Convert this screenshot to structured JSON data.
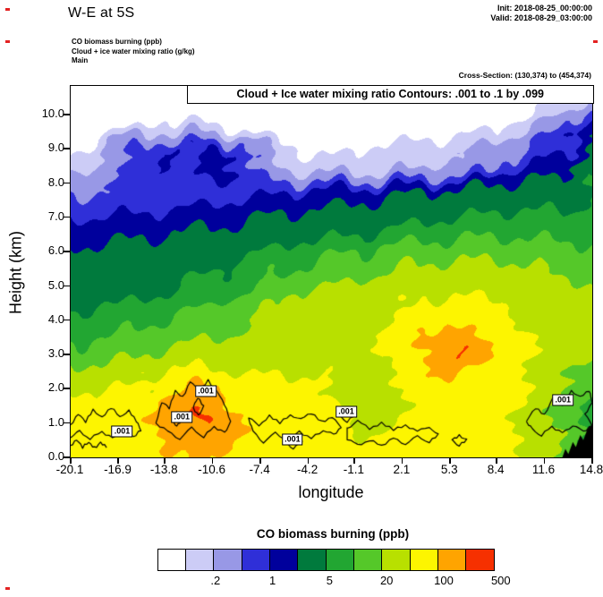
{
  "header": {
    "title": "W-E at 5S",
    "init": "Init: 2018-08-25_00:00:00",
    "valid": "Valid: 2018-08-29_03:00:00"
  },
  "legend": {
    "line1": "CO biomass burning   (ppb)",
    "line2": "Cloud + ice water mixing ratio   (g/kg)",
    "line3": "Main"
  },
  "cross_section": "Cross-Section: (130,374) to (454,374)",
  "plot": {
    "inner_title": "Cloud + Ice water mixing ratio Contours: .001 to .1 by .099",
    "xlabel": "longitude",
    "ylabel": "Height (km)"
  },
  "colorbar": {
    "title": "CO biomass burning  (ppb)",
    "tick_labels": [
      ".2",
      "1",
      "5",
      "20",
      "100",
      "500"
    ],
    "tick_boundary_cells": [
      2,
      4,
      6,
      8,
      10,
      12
    ]
  },
  "chart_data": {
    "type": "contour",
    "title": "Cloud + Ice water mixing ratio Contours: .001 to .1 by .099",
    "xlabel": "longitude",
    "ylabel": "Height (km)",
    "xlim": [
      -20.1,
      14.8
    ],
    "ylim": [
      0,
      10.84
    ],
    "x_ticks": [
      -20.1,
      -16.9,
      -13.8,
      -10.6,
      -7.4,
      -4.2,
      -1.1,
      2.1,
      5.3,
      8.4,
      11.6,
      14.8
    ],
    "y_ticks": [
      "0.0",
      "1.0",
      "2.0",
      "3.0",
      "4.0",
      "5.0",
      "6.0",
      "7.0",
      "8.0",
      "9.0",
      "10.0"
    ],
    "fill_levels_ppb": [
      0.1,
      0.2,
      0.5,
      1,
      2,
      5,
      10,
      20,
      50,
      100,
      200,
      500
    ],
    "fill_colors": [
      "#ffffff",
      "#ccccf6",
      "#9898e6",
      "#2f2fd8",
      "#00009c",
      "#007a3d",
      "#22a632",
      "#55c829",
      "#b8e000",
      "#fdf500",
      "#ffa400",
      "#f63000"
    ],
    "fill_field": {
      "name": "CO biomass burning",
      "units": "ppb",
      "lons": [
        -20.1,
        -18.6,
        -17.1,
        -15.6,
        -14.1,
        -12.5,
        -11.0,
        -9.5,
        -8.0,
        -6.5,
        -4.9,
        -3.4,
        -1.9,
        -0.4,
        1.1,
        2.7,
        4.2,
        5.7,
        7.2,
        8.7,
        10.3,
        11.8,
        13.3,
        14.8
      ],
      "heights_km": [
        0,
        0.6,
        1.2,
        1.8,
        2.4,
        3.0,
        3.6,
        4.2,
        4.8,
        5.4,
        6.0,
        6.6,
        7.2,
        7.8,
        8.4,
        9.0,
        9.6,
        10.2,
        10.8
      ],
      "values_ppb": [
        [
          70,
          70,
          75,
          75,
          85,
          95,
          110,
          90,
          75,
          70,
          70,
          65,
          60,
          55,
          60,
          65,
          70,
          70,
          65,
          60,
          50,
          40,
          15,
          8
        ],
        [
          65,
          70,
          75,
          80,
          110,
          150,
          170,
          120,
          80,
          70,
          70,
          65,
          60,
          50,
          55,
          65,
          70,
          70,
          65,
          55,
          45,
          30,
          12,
          7
        ],
        [
          60,
          65,
          70,
          75,
          120,
          170,
          230,
          130,
          75,
          65,
          60,
          60,
          55,
          30,
          35,
          60,
          70,
          75,
          70,
          60,
          45,
          25,
          12,
          8
        ],
        [
          55,
          60,
          60,
          65,
          100,
          140,
          150,
          100,
          70,
          60,
          55,
          55,
          45,
          25,
          30,
          60,
          75,
          80,
          75,
          65,
          50,
          28,
          14,
          10
        ],
        [
          30,
          35,
          35,
          40,
          60,
          70,
          70,
          60,
          50,
          50,
          50,
          50,
          45,
          35,
          45,
          70,
          90,
          100,
          90,
          70,
          55,
          35,
          18,
          14
        ],
        [
          12,
          14,
          16,
          18,
          25,
          30,
          30,
          30,
          35,
          40,
          45,
          45,
          45,
          45,
          60,
          90,
          130,
          220,
          120,
          80,
          60,
          40,
          25,
          20
        ],
        [
          8,
          9,
          10,
          11,
          14,
          16,
          18,
          20,
          25,
          30,
          35,
          38,
          40,
          42,
          55,
          80,
          110,
          130,
          100,
          70,
          55,
          38,
          28,
          24
        ],
        [
          5,
          6,
          6,
          7,
          8,
          10,
          12,
          14,
          18,
          22,
          28,
          30,
          32,
          35,
          45,
          60,
          75,
          80,
          70,
          60,
          48,
          36,
          28,
          26
        ],
        [
          3.5,
          4,
          4,
          4.5,
          5,
          6,
          7,
          9,
          12,
          16,
          20,
          24,
          26,
          28,
          32,
          40,
          45,
          48,
          45,
          42,
          38,
          30,
          26,
          24
        ],
        [
          2.8,
          3,
          3,
          3.2,
          3.5,
          4,
          4.5,
          5.5,
          7,
          9,
          12,
          14,
          16,
          18,
          22,
          26,
          28,
          28,
          28,
          28,
          26,
          22,
          18,
          16
        ],
        [
          2.2,
          2.4,
          2.4,
          2.6,
          2.8,
          3,
          3.2,
          3.6,
          4.5,
          5.5,
          7,
          8,
          9,
          10,
          12,
          14,
          15,
          16,
          16,
          16,
          15,
          14,
          12,
          12
        ],
        [
          1.4,
          1.5,
          1.6,
          1.7,
          1.8,
          2,
          2.2,
          2.4,
          2.8,
          3.2,
          3.6,
          3.8,
          4,
          4.5,
          5.5,
          6.5,
          7,
          7.5,
          8,
          8.5,
          8.5,
          8,
          7.5,
          8
        ],
        [
          0.8,
          0.85,
          0.9,
          0.95,
          1,
          1.1,
          1.2,
          1.3,
          1.5,
          1.7,
          1.9,
          2.1,
          2.3,
          2.6,
          3,
          3.4,
          3.8,
          4.2,
          4.6,
          5,
          5.2,
          5,
          4.8,
          6
        ],
        [
          0.4,
          0.45,
          0.5,
          0.55,
          0.6,
          0.65,
          0.7,
          0.75,
          0.8,
          0.9,
          1,
          1.1,
          1.2,
          1.3,
          1.5,
          1.7,
          1.9,
          2.1,
          2.4,
          2.8,
          3.2,
          3.4,
          3,
          5.5
        ],
        [
          0.18,
          0.25,
          0.5,
          0.8,
          1,
          0.8,
          1.2,
          1.4,
          0.8,
          0.25,
          0.18,
          0.15,
          0.15,
          0.15,
          0.18,
          0.2,
          0.25,
          0.3,
          0.4,
          0.8,
          1.2,
          1.5,
          1.2,
          5
        ],
        [
          0.08,
          0.12,
          0.3,
          0.7,
          1.2,
          0.7,
          1.4,
          0.9,
          0.3,
          0.15,
          0.1,
          0.08,
          0.08,
          0.1,
          0.12,
          0.12,
          0.15,
          0.15,
          0.2,
          0.3,
          0.5,
          0.8,
          1,
          4
        ],
        [
          0.05,
          0.06,
          0.08,
          0.12,
          0.15,
          0.12,
          0.15,
          0.12,
          0.08,
          0.06,
          0.05,
          0.05,
          0.05,
          0.05,
          0.06,
          0.06,
          0.07,
          0.07,
          0.08,
          0.1,
          0.15,
          0.3,
          0.6,
          1.5
        ],
        [
          0.04,
          0.04,
          0.05,
          0.05,
          0.06,
          0.05,
          0.05,
          0.05,
          0.04,
          0.04,
          0.04,
          0.04,
          0.04,
          0.04,
          0.04,
          0.05,
          0.05,
          0.05,
          0.05,
          0.06,
          0.08,
          0.12,
          0.25,
          0.5
        ],
        [
          0.04,
          0.04,
          0.04,
          0.04,
          0.04,
          0.04,
          0.04,
          0.04,
          0.04,
          0.04,
          0.04,
          0.04,
          0.04,
          0.04,
          0.04,
          0.04,
          0.04,
          0.04,
          0.04,
          0.04,
          0.05,
          0.06,
          0.1,
          0.2
        ]
      ]
    },
    "cloud_contours": {
      "name": "Cloud + Ice water mixing ratio",
      "units": "g/kg",
      "levels": [
        0.001,
        0.1
      ],
      "paths": [
        {
          "level": 0.001,
          "points": [
            [
              -20.1,
              0.95
            ],
            [
              -19.6,
              1.25
            ],
            [
              -19.1,
              1.05
            ],
            [
              -18.6,
              1.4
            ],
            [
              -18.0,
              1.15
            ],
            [
              -17.4,
              1.45
            ],
            [
              -16.8,
              1.2
            ],
            [
              -16.2,
              1.35
            ],
            [
              -15.7,
              1.05
            ],
            [
              -15.4,
              0.8
            ],
            [
              -15.9,
              0.6
            ],
            [
              -16.6,
              0.75
            ],
            [
              -17.3,
              0.55
            ],
            [
              -18.0,
              0.75
            ],
            [
              -18.8,
              0.55
            ],
            [
              -19.5,
              0.75
            ],
            [
              -20.1,
              0.6
            ]
          ]
        },
        {
          "level": 0.001,
          "points": [
            [
              -20.1,
              0.35
            ],
            [
              -19.7,
              0.5
            ],
            [
              -19.3,
              0.3
            ],
            [
              -18.9,
              0.45
            ],
            [
              -18.5,
              0.28
            ],
            [
              -18.1,
              0.42
            ],
            [
              -17.7,
              0.3
            ]
          ]
        },
        {
          "level": 0.001,
          "points": [
            [
              -14.4,
              1.0
            ],
            [
              -14.0,
              1.6
            ],
            [
              -13.5,
              1.45
            ],
            [
              -13.1,
              1.95
            ],
            [
              -12.6,
              1.75
            ],
            [
              -12.1,
              2.2
            ],
            [
              -11.5,
              1.95
            ],
            [
              -10.9,
              2.25
            ],
            [
              -10.3,
              1.9
            ],
            [
              -9.8,
              1.55
            ],
            [
              -9.4,
              1.05
            ],
            [
              -9.8,
              0.7
            ],
            [
              -10.5,
              0.9
            ],
            [
              -11.2,
              0.6
            ],
            [
              -12.0,
              0.85
            ],
            [
              -12.8,
              0.55
            ],
            [
              -13.6,
              0.75
            ],
            [
              -14.4,
              1.0
            ]
          ]
        },
        {
          "level": 0.1,
          "points": [
            [
              -11.9,
              1.45
            ],
            [
              -11.6,
              1.75
            ],
            [
              -11.2,
              1.5
            ],
            [
              -11.55,
              1.2
            ],
            [
              -11.9,
              1.45
            ]
          ]
        },
        {
          "level": 0.1,
          "points": [
            [
              -13.3,
              1.1
            ],
            [
              -13.0,
              1.3
            ],
            [
              -12.7,
              1.1
            ],
            [
              -13.0,
              0.9
            ],
            [
              -13.3,
              1.1
            ]
          ]
        },
        {
          "level": 0.001,
          "points": [
            [
              -8.2,
              1.15
            ],
            [
              -7.5,
              0.95
            ],
            [
              -6.8,
              1.2
            ],
            [
              -6.1,
              1.0
            ],
            [
              -5.4,
              1.25
            ],
            [
              -4.7,
              1.1
            ],
            [
              -4.0,
              1.3
            ],
            [
              -3.3,
              1.05
            ],
            [
              -2.6,
              1.15
            ],
            [
              -2.0,
              0.9
            ],
            [
              -2.5,
              0.65
            ],
            [
              -3.2,
              0.8
            ],
            [
              -4.0,
              0.55
            ],
            [
              -4.8,
              0.75
            ],
            [
              -5.6,
              0.5
            ],
            [
              -6.4,
              0.7
            ],
            [
              -7.2,
              0.45
            ],
            [
              -7.9,
              0.75
            ],
            [
              -8.2,
              1.15
            ]
          ]
        },
        {
          "level": 0.001,
          "points": [
            [
              -5.8,
              0.45
            ],
            [
              -5.2,
              0.62
            ],
            [
              -4.6,
              0.45
            ],
            [
              -5.2,
              0.28
            ],
            [
              -5.8,
              0.45
            ]
          ]
        },
        {
          "level": 0.001,
          "points": [
            [
              -2.2,
              1.25
            ],
            [
              -1.6,
              1.45
            ],
            [
              -1.0,
              1.25
            ],
            [
              -1.6,
              1.05
            ],
            [
              -2.2,
              1.25
            ]
          ]
        },
        {
          "level": 0.001,
          "points": [
            [
              -1.6,
              0.85
            ],
            [
              -0.9,
              1.05
            ],
            [
              -0.1,
              0.85
            ],
            [
              0.7,
              1.0
            ],
            [
              1.5,
              0.8
            ],
            [
              2.3,
              0.95
            ],
            [
              3.1,
              0.75
            ],
            [
              3.9,
              0.9
            ],
            [
              4.5,
              0.65
            ],
            [
              3.9,
              0.45
            ],
            [
              3.1,
              0.6
            ],
            [
              2.3,
              0.4
            ],
            [
              1.5,
              0.55
            ],
            [
              0.7,
              0.35
            ],
            [
              -0.1,
              0.5
            ],
            [
              -0.9,
              0.35
            ],
            [
              -1.6,
              0.55
            ],
            [
              -1.6,
              0.85
            ]
          ]
        },
        {
          "level": 0.001,
          "points": [
            [
              5.4,
              0.5
            ],
            [
              5.9,
              0.65
            ],
            [
              6.4,
              0.5
            ],
            [
              5.9,
              0.35
            ],
            [
              5.4,
              0.5
            ]
          ]
        },
        {
          "level": 0.001,
          "points": [
            [
              10.4,
              1.05
            ],
            [
              11.0,
              1.45
            ],
            [
              11.6,
              1.25
            ],
            [
              12.2,
              1.75
            ],
            [
              12.8,
              1.55
            ],
            [
              13.4,
              1.95
            ],
            [
              14.0,
              1.75
            ],
            [
              14.6,
              1.95
            ],
            [
              14.8,
              1.6
            ],
            [
              14.3,
              1.25
            ],
            [
              14.8,
              0.95
            ],
            [
              14.2,
              0.75
            ],
            [
              13.5,
              0.95
            ],
            [
              12.8,
              0.7
            ],
            [
              12.1,
              0.9
            ],
            [
              11.4,
              0.65
            ],
            [
              10.8,
              0.8
            ],
            [
              10.4,
              1.05
            ]
          ]
        }
      ],
      "labels": [
        {
          "text": ".001",
          "lon": -16.6,
          "km": 0.72
        },
        {
          "text": ".001",
          "lon": -12.6,
          "km": 1.15
        },
        {
          "text": ".001",
          "lon": -11.0,
          "km": 1.9
        },
        {
          "text": ".001",
          "lon": -5.2,
          "km": 0.5
        },
        {
          "text": ".001",
          "lon": -1.6,
          "km": 1.3
        },
        {
          "text": ".001",
          "lon": 12.9,
          "km": 1.65
        }
      ]
    },
    "terrain": {
      "color": "#000000",
      "points": [
        [
          12.8,
          0
        ],
        [
          13.0,
          0.25
        ],
        [
          13.2,
          0.1
        ],
        [
          13.5,
          0.45
        ],
        [
          13.7,
          0.3
        ],
        [
          14.0,
          0.65
        ],
        [
          14.2,
          0.5
        ],
        [
          14.5,
          0.85
        ],
        [
          14.8,
          0.95
        ],
        [
          14.8,
          0
        ]
      ]
    }
  }
}
